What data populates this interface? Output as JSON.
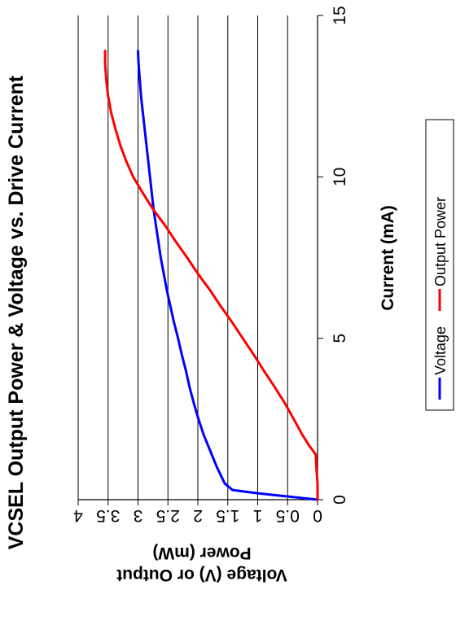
{
  "chart_data": {
    "type": "line",
    "title": "VCSEL Output Power & Voltage vs. Drive Current",
    "xlabel": "Current (mA)",
    "ylabel_line1": "Voltage (V) or Output",
    "ylabel_line2": "Power (mW)",
    "xlim": [
      0,
      15
    ],
    "ylim": [
      0,
      4
    ],
    "x_ticks": [
      {
        "value": 0,
        "label": "0"
      },
      {
        "value": 5,
        "label": "5"
      },
      {
        "value": 10,
        "label": "10"
      },
      {
        "value": 15,
        "label": "15"
      }
    ],
    "y_ticks": [
      {
        "value": 0,
        "label": "0"
      },
      {
        "value": 0.5,
        "label": "0.5"
      },
      {
        "value": 1,
        "label": "1"
      },
      {
        "value": 1.5,
        "label": "1.5"
      },
      {
        "value": 2,
        "label": "2"
      },
      {
        "value": 2.5,
        "label": "2.5"
      },
      {
        "value": 3,
        "label": "3"
      },
      {
        "value": 3.5,
        "label": "3.5"
      },
      {
        "value": 4,
        "label": "4"
      }
    ],
    "grid": "horizontal",
    "legend_position": "bottom",
    "orientation": "rotated 90° counter-clockwise",
    "series": [
      {
        "name": "Voltage",
        "color": "#0000ff",
        "x": [
          0,
          0.2,
          0.3,
          0.5,
          1.0,
          1.5,
          2.0,
          2.5,
          3.0,
          3.5,
          4.0,
          4.5,
          5.0,
          5.5,
          6.0,
          6.5,
          7.0,
          7.5,
          8.0,
          8.5,
          9.0,
          9.5,
          10.0,
          10.5,
          11.0,
          11.5,
          12.0,
          12.5,
          13.0,
          13.5,
          13.9
        ],
        "y": [
          0,
          1.0,
          1.42,
          1.55,
          1.68,
          1.79,
          1.9,
          1.99,
          2.07,
          2.14,
          2.2,
          2.27,
          2.33,
          2.4,
          2.46,
          2.52,
          2.57,
          2.62,
          2.66,
          2.7,
          2.74,
          2.77,
          2.8,
          2.83,
          2.86,
          2.89,
          2.92,
          2.95,
          2.97,
          2.99,
          3.0
        ]
      },
      {
        "name": "Output Power",
        "color": "#ff0000",
        "x": [
          0,
          0.5,
          1.0,
          1.4,
          1.7,
          2.0,
          2.5,
          3.0,
          3.5,
          4.0,
          4.5,
          5.0,
          5.5,
          6.0,
          6.5,
          7.0,
          7.5,
          8.0,
          8.5,
          9.0,
          9.5,
          10.0,
          10.5,
          11.0,
          11.5,
          12.0,
          12.5,
          13.0,
          13.5,
          13.9
        ],
        "y": [
          0,
          0,
          0.02,
          0.03,
          0.15,
          0.25,
          0.4,
          0.55,
          0.72,
          0.9,
          1.07,
          1.25,
          1.43,
          1.62,
          1.8,
          2.0,
          2.18,
          2.37,
          2.55,
          2.75,
          2.92,
          3.08,
          3.2,
          3.3,
          3.38,
          3.45,
          3.5,
          3.53,
          3.55,
          3.55
        ]
      }
    ]
  }
}
